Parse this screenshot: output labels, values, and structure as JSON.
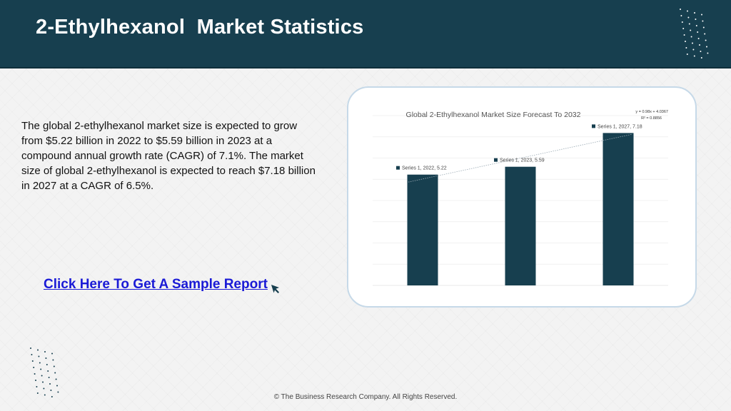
{
  "header": {
    "title": "2-Ethylhexanol  Market Statistics"
  },
  "description": "The global 2-ethylhexanol market size is expected to grow from $5.22 billion in 2022 to $5.59 billion in 2023 at a compound annual growth rate (CAGR) of 7.1%. The market size of global 2-ethylhexanol is expected to reach $7.18 billion in 2027 at a CAGR of 6.5%.",
  "cta": {
    "label": "Click Here To Get A Sample Report"
  },
  "footer": {
    "copyright": "© The Business Research Company. All Rights Reserved."
  },
  "icons": {
    "cursor": "cursor-arrow-icon",
    "decoration": "dot-grid-icon"
  },
  "colors": {
    "header": "#173f4f",
    "bar": "#173f4f",
    "link": "#1a1ad6"
  },
  "chart_data": {
    "type": "bar",
    "title": "Global 2-Ethylhexanol  Market Size Forecast To 2032",
    "categories": [
      "2022",
      "2023",
      "2027"
    ],
    "series": [
      {
        "name": "Series 1",
        "values": [
          5.22,
          5.59,
          7.18
        ]
      }
    ],
    "data_labels": [
      "Series 1, 2022, 5.22",
      "Series 1, 2023, 5.59",
      "Series 1, 2027, 7.18"
    ],
    "trendline": {
      "equation": "y = 0.98x + 4.0367",
      "r2": "R² = 0.8856",
      "slope": 0.98,
      "intercept": 4.0367
    },
    "ylim": [
      0,
      8
    ],
    "grid": true,
    "xlabel": "",
    "ylabel": ""
  }
}
